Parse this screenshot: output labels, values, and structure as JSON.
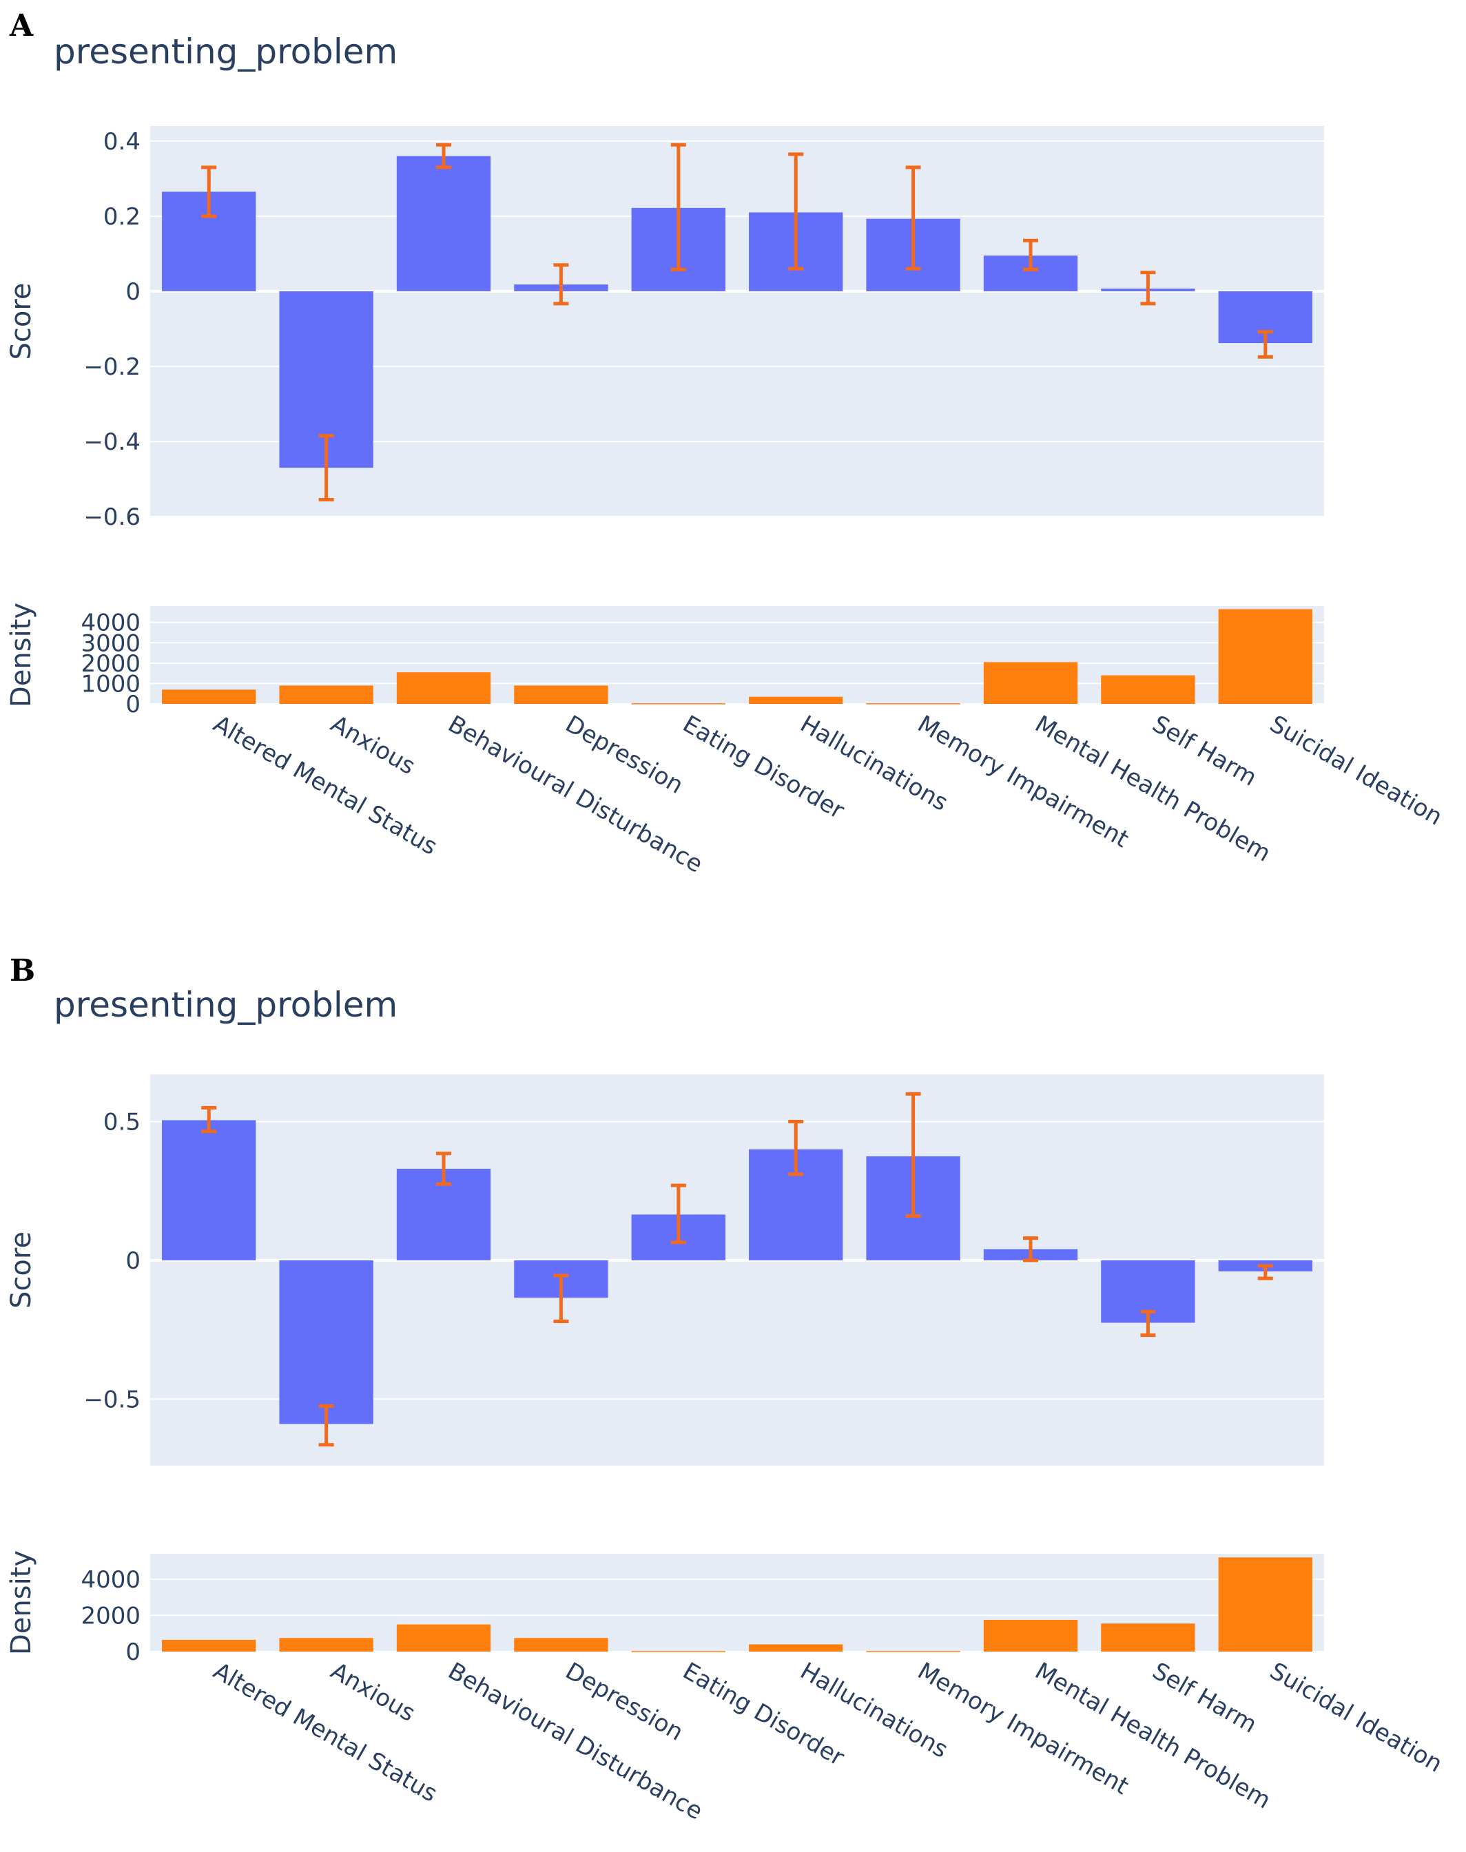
{
  "colors": {
    "plot_bg": "#e5ecf6",
    "grid": "#ffffff",
    "score_bar": "#636efa",
    "error_bar": "#f26a1b",
    "density_bar": "#ff7f0e",
    "text": "#2a3f5f"
  },
  "chart_data": [
    {
      "panel": "A",
      "type": "bar",
      "title": "presenting_problem",
      "categories": [
        "Altered Mental Status",
        "Anxious",
        "Behavioural Disturbance",
        "Depression",
        "Eating Disorder",
        "Hallucinations",
        "Memory Impairment",
        "Mental Health Problem",
        "Self Harm",
        "Suicidal Ideation"
      ],
      "score": {
        "ylabel": "Score",
        "ylim": [
          -0.6,
          0.44
        ],
        "ticks": [
          -0.6,
          -0.4,
          -0.2,
          0,
          0.2,
          0.4
        ],
        "tick_labels": [
          "−0.6",
          "−0.4",
          "−0.2",
          "0",
          "0.2",
          "0.4"
        ],
        "values": [
          0.265,
          -0.47,
          0.36,
          0.018,
          0.222,
          0.21,
          0.193,
          0.095,
          0.007,
          -0.138
        ],
        "error_low": [
          0.2,
          -0.555,
          0.33,
          -0.033,
          0.058,
          0.06,
          0.06,
          0.058,
          -0.033,
          -0.175
        ],
        "error_high": [
          0.33,
          -0.385,
          0.39,
          0.07,
          0.39,
          0.365,
          0.33,
          0.135,
          0.05,
          -0.108
        ]
      },
      "density": {
        "ylabel": "Density",
        "ylim": [
          0,
          4800
        ],
        "ticks": [
          0,
          1000,
          2000,
          3000,
          4000
        ],
        "tick_labels": [
          "0",
          "1000",
          "2000",
          "3000",
          "4000"
        ],
        "values": [
          700,
          900,
          1550,
          900,
          30,
          350,
          30,
          2050,
          1400,
          4650
        ]
      }
    },
    {
      "panel": "B",
      "type": "bar",
      "title": "presenting_problem",
      "categories": [
        "Altered Mental Status",
        "Anxious",
        "Behavioural Disturbance",
        "Depression",
        "Eating Disorder",
        "Hallucinations",
        "Memory Impairment",
        "Mental Health Problem",
        "Self Harm",
        "Suicidal Ideation"
      ],
      "score": {
        "ylabel": "Score",
        "ylim": [
          -0.74,
          0.67
        ],
        "ticks": [
          -0.5,
          0,
          0.5
        ],
        "tick_labels": [
          "−0.5",
          "0",
          "0.5"
        ],
        "values": [
          0.505,
          -0.59,
          0.33,
          -0.135,
          0.165,
          0.4,
          0.375,
          0.04,
          -0.225,
          -0.04
        ],
        "error_low": [
          0.465,
          -0.665,
          0.275,
          -0.22,
          0.065,
          0.31,
          0.16,
          0.0,
          -0.27,
          -0.065
        ],
        "error_high": [
          0.55,
          -0.525,
          0.385,
          -0.055,
          0.27,
          0.5,
          0.6,
          0.08,
          -0.185,
          -0.02
        ]
      },
      "density": {
        "ylabel": "Density",
        "ylim": [
          0,
          5400
        ],
        "ticks": [
          0,
          2000,
          4000
        ],
        "tick_labels": [
          "0",
          "2000",
          "4000"
        ],
        "values": [
          650,
          750,
          1500,
          750,
          30,
          400,
          30,
          1750,
          1550,
          5200
        ]
      }
    }
  ]
}
